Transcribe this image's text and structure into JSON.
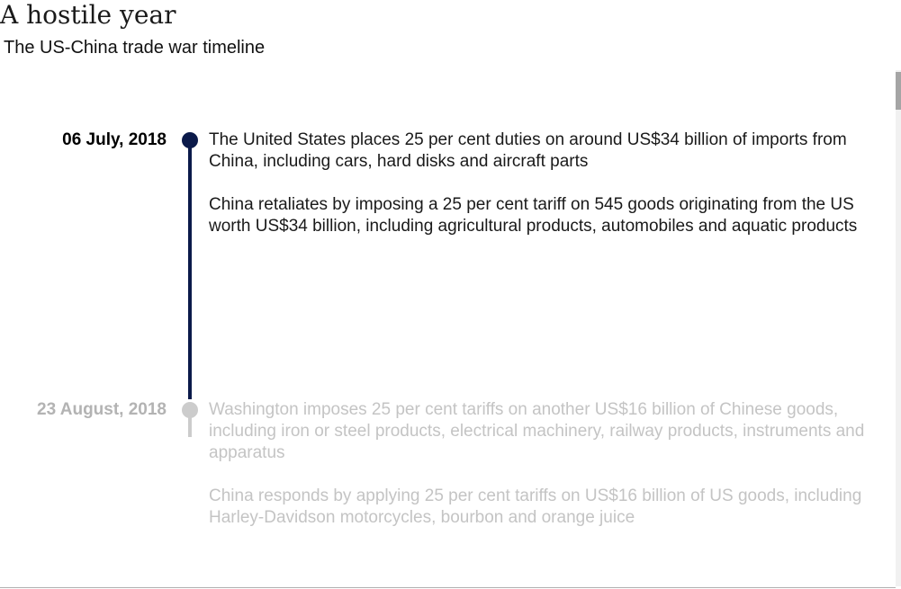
{
  "header": {
    "title": "A hostile year",
    "subtitle": "The US-China trade war timeline"
  },
  "timeline": {
    "events": [
      {
        "date": "06 July, 2018",
        "state": "active",
        "paragraphs": [
          "The United States places 25 per cent duties on around US$34 billion of imports from China, including cars, hard disks and aircraft parts",
          "China retaliates by imposing a 25 per cent tariff on 545 goods originating from the US worth US$34 billion, including agricultural products, automobiles and aquatic products"
        ]
      },
      {
        "date": "23 August, 2018",
        "state": "inactive",
        "paragraphs": [
          "Washington imposes 25 per cent tariffs on another US$16 billion of Chinese goods, including iron or steel products, electrical machinery, railway products, instruments and apparatus",
          "China responds by applying 25 per cent tariffs on US$16 billion of US goods, including Harley-Davidson motorcycles, bourbon and orange juice"
        ]
      }
    ]
  },
  "colors": {
    "active_accent": "#0b1a4a",
    "inactive_accent": "#cccccc",
    "inactive_text": "#c4c4c4"
  }
}
